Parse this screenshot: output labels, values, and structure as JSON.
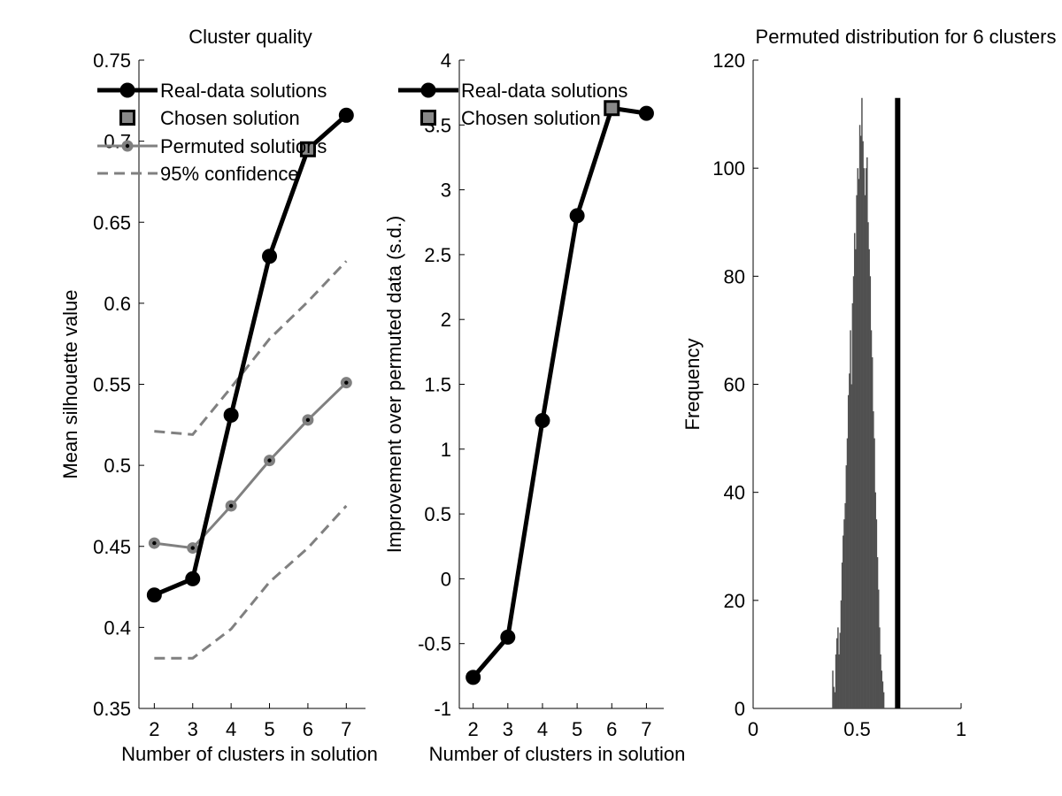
{
  "chart_data": [
    {
      "type": "line",
      "title": "Cluster quality",
      "xlabel": "Number of clusters in solution",
      "ylabel": "Mean silhouette value",
      "xlim": [
        1.6,
        7.5
      ],
      "ylim": [
        0.35,
        0.75
      ],
      "x": [
        2,
        3,
        4,
        5,
        6,
        7
      ],
      "xticks": [
        "2",
        "3",
        "4",
        "5",
        "6",
        "7"
      ],
      "yticks": [
        "0.35",
        "0.4",
        "0.45",
        "0.5",
        "0.55",
        "0.6",
        "0.65",
        "0.7",
        "0.75"
      ],
      "series": [
        {
          "name": "Real-data solutions",
          "values": [
            0.42,
            0.43,
            0.531,
            0.629,
            0.695,
            0.716
          ],
          "color": "#000000",
          "style": "solid-marker"
        },
        {
          "name": "Chosen solution",
          "x": [
            6
          ],
          "values": [
            0.695
          ],
          "color": "#888888",
          "style": "square-marker"
        },
        {
          "name": "Permuted solutions",
          "values": [
            0.452,
            0.449,
            0.475,
            0.503,
            0.528,
            0.551
          ],
          "color": "#808080",
          "style": "solid-small-marker"
        },
        {
          "name": "95% confidence",
          "values": [
            0.521,
            0.519,
            0.548,
            0.578,
            0.601,
            0.626
          ],
          "lower": [
            0.381,
            0.381,
            0.399,
            0.428,
            0.449,
            0.475
          ],
          "color": "#808080",
          "style": "dashed"
        }
      ],
      "legend_position": "top-left"
    },
    {
      "type": "line",
      "title": "",
      "xlabel": "Number of clusters in solution",
      "ylabel": "Improvement over permuted data (s.d.)",
      "xlim": [
        1.6,
        7.5
      ],
      "ylim": [
        -1,
        4
      ],
      "x": [
        2,
        3,
        4,
        5,
        6,
        7
      ],
      "xticks": [
        "2",
        "3",
        "4",
        "5",
        "6",
        "7"
      ],
      "yticks": [
        "-1",
        "-0.5",
        "0",
        "0.5",
        "1",
        "1.5",
        "2",
        "2.5",
        "3",
        "3.5",
        "4"
      ],
      "series": [
        {
          "name": "Real-data solutions",
          "values": [
            -0.76,
            -0.45,
            1.22,
            2.8,
            3.63,
            3.59
          ],
          "color": "#000000",
          "style": "solid-marker"
        },
        {
          "name": "Chosen solution",
          "x": [
            6
          ],
          "values": [
            3.63
          ],
          "color": "#888888",
          "style": "square-marker"
        }
      ],
      "legend_position": "top-left"
    },
    {
      "type": "bar",
      "title": "Permuted distribution for 6 clusters",
      "xlabel": "",
      "ylabel": "Frequency",
      "xlim": [
        0,
        1
      ],
      "ylim": [
        0,
        120
      ],
      "xticks": [
        "0",
        "0.5",
        "1"
      ],
      "yticks": [
        "0",
        "20",
        "40",
        "60",
        "80",
        "100",
        "120"
      ],
      "histogram": {
        "bin_start": 0.38,
        "bin_width": 0.005,
        "counts": [
          7,
          4,
          3,
          10,
          13,
          15,
          10,
          14,
          20,
          27,
          32,
          35,
          38,
          45,
          50,
          58,
          62,
          70,
          60,
          75,
          80,
          88,
          85,
          95,
          100,
          98,
          108,
          106,
          113,
          105,
          100,
          95,
          100,
          102,
          90,
          85,
          80,
          70,
          65,
          55,
          50,
          40,
          35,
          28,
          22,
          15,
          10,
          7,
          5,
          3
        ],
        "color": "#505050"
      },
      "marker_line": {
        "x": 0.695,
        "color": "#000000"
      }
    }
  ]
}
